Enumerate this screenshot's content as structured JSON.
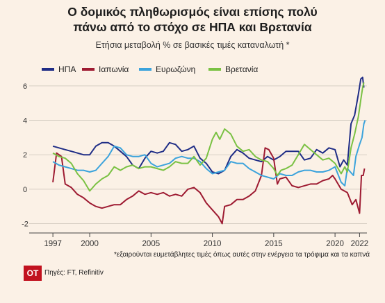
{
  "header": {
    "title_line1": "Ο δομικός πληθωρισμός είναι επίσης πολύ",
    "title_line2": "πάνω από το στόχο σε ΗΠΑ και Βρετανία",
    "subtitle": "Ετήσια μεταβολή % σε βασικές τιμές καταναλωτή *"
  },
  "footer": {
    "footnote": "*εξαιρούνται ευμετάβλητες τιμές όπως αυτές στην ενέργεια τα τρόφιμα και τα καπνά",
    "logo_text": "ΟΤ",
    "source": "Πηγές: FT, Refinitiv"
  },
  "chart_data": {
    "type": "line",
    "x_tick_labels": [
      "1997",
      "2000",
      "2005",
      "2010",
      "2015",
      "2020",
      "2022"
    ],
    "x_tick_values": [
      1997,
      2000,
      2005,
      2010,
      2015,
      2020,
      2022
    ],
    "y_tick_labels": [
      "-2",
      "0",
      "2",
      "4",
      "6"
    ],
    "y_tick_values": [
      -2,
      0,
      2,
      4,
      6
    ],
    "xlim": [
      1996.2,
      2022.6
    ],
    "ylim": [
      -2.3,
      6.8
    ],
    "grid": "horizontal",
    "legend": "top",
    "x_unit": "year",
    "series": [
      {
        "name": "ΗΠΑ",
        "color": "#1f2d86",
        "points": [
          [
            1997,
            2.5
          ],
          [
            1997.5,
            2.4
          ],
          [
            1998,
            2.3
          ],
          [
            1998.5,
            2.2
          ],
          [
            1999,
            2.1
          ],
          [
            1999.5,
            2.0
          ],
          [
            2000,
            2.0
          ],
          [
            2000.5,
            2.5
          ],
          [
            2001,
            2.7
          ],
          [
            2001.5,
            2.7
          ],
          [
            2002,
            2.5
          ],
          [
            2002.5,
            2.2
          ],
          [
            2003,
            1.9
          ],
          [
            2003.5,
            1.4
          ],
          [
            2004,
            1.2
          ],
          [
            2004.5,
            1.8
          ],
          [
            2005,
            2.2
          ],
          [
            2005.5,
            2.1
          ],
          [
            2006,
            2.2
          ],
          [
            2006.5,
            2.7
          ],
          [
            2007,
            2.6
          ],
          [
            2007.5,
            2.2
          ],
          [
            2008,
            2.3
          ],
          [
            2008.5,
            2.5
          ],
          [
            2009,
            1.8
          ],
          [
            2009.5,
            1.5
          ],
          [
            2010,
            1.0
          ],
          [
            2010.5,
            0.9
          ],
          [
            2011,
            1.1
          ],
          [
            2011.5,
            1.9
          ],
          [
            2012,
            2.3
          ],
          [
            2012.5,
            2.1
          ],
          [
            2013,
            1.8
          ],
          [
            2013.5,
            1.7
          ],
          [
            2014,
            1.6
          ],
          [
            2014.5,
            1.9
          ],
          [
            2015,
            1.7
          ],
          [
            2015.5,
            1.9
          ],
          [
            2016,
            2.2
          ],
          [
            2016.5,
            2.2
          ],
          [
            2017,
            2.2
          ],
          [
            2017.5,
            1.7
          ],
          [
            2018,
            1.8
          ],
          [
            2018.5,
            2.3
          ],
          [
            2019,
            2.1
          ],
          [
            2019.5,
            2.4
          ],
          [
            2020,
            2.3
          ],
          [
            2020.4,
            1.3
          ],
          [
            2020.7,
            1.7
          ],
          [
            2021,
            1.4
          ],
          [
            2021.3,
            3.8
          ],
          [
            2021.6,
            4.3
          ],
          [
            2021.9,
            5.5
          ],
          [
            2022.1,
            6.4
          ],
          [
            2022.25,
            6.5
          ],
          [
            2022.35,
            5.9
          ]
        ]
      },
      {
        "name": "Ιαπωνία",
        "color": "#9e1b32",
        "points": [
          [
            1997,
            0.4
          ],
          [
            1997.3,
            2.1
          ],
          [
            1997.7,
            1.9
          ],
          [
            1998,
            0.3
          ],
          [
            1998.5,
            0.1
          ],
          [
            1999,
            -0.3
          ],
          [
            1999.5,
            -0.5
          ],
          [
            2000,
            -0.8
          ],
          [
            2000.5,
            -1.0
          ],
          [
            2001,
            -1.1
          ],
          [
            2001.5,
            -1.0
          ],
          [
            2002,
            -0.9
          ],
          [
            2002.5,
            -0.9
          ],
          [
            2003,
            -0.6
          ],
          [
            2003.5,
            -0.4
          ],
          [
            2004,
            -0.1
          ],
          [
            2004.5,
            -0.3
          ],
          [
            2005,
            -0.2
          ],
          [
            2005.5,
            -0.3
          ],
          [
            2006,
            -0.2
          ],
          [
            2006.5,
            -0.4
          ],
          [
            2007,
            -0.3
          ],
          [
            2007.5,
            -0.4
          ],
          [
            2008,
            0.0
          ],
          [
            2008.5,
            0.1
          ],
          [
            2009,
            -0.2
          ],
          [
            2009.5,
            -0.8
          ],
          [
            2010,
            -1.2
          ],
          [
            2010.5,
            -1.6
          ],
          [
            2010.8,
            -2.0
          ],
          [
            2011,
            -1.0
          ],
          [
            2011.5,
            -0.9
          ],
          [
            2012,
            -0.6
          ],
          [
            2012.5,
            -0.6
          ],
          [
            2013,
            -0.4
          ],
          [
            2013.5,
            -0.1
          ],
          [
            2014,
            0.8
          ],
          [
            2014.3,
            2.4
          ],
          [
            2014.6,
            2.3
          ],
          [
            2015,
            1.8
          ],
          [
            2015.3,
            0.3
          ],
          [
            2015.5,
            0.6
          ],
          [
            2016,
            0.7
          ],
          [
            2016.5,
            0.2
          ],
          [
            2017,
            0.1
          ],
          [
            2017.5,
            0.2
          ],
          [
            2018,
            0.3
          ],
          [
            2018.5,
            0.3
          ],
          [
            2019,
            0.5
          ],
          [
            2019.5,
            0.6
          ],
          [
            2019.8,
            0.8
          ],
          [
            2020,
            0.6
          ],
          [
            2020.5,
            0.0
          ],
          [
            2021,
            -0.2
          ],
          [
            2021.4,
            -0.9
          ],
          [
            2021.7,
            -0.6
          ],
          [
            2022,
            -1.4
          ],
          [
            2022.15,
            0.8
          ],
          [
            2022.3,
            0.8
          ],
          [
            2022.4,
            1.2
          ]
        ]
      },
      {
        "name": "Ευρωζώνη",
        "color": "#3ba3dc",
        "points": [
          [
            1997,
            1.6
          ],
          [
            1997.5,
            1.4
          ],
          [
            1998,
            1.3
          ],
          [
            1998.5,
            1.2
          ],
          [
            1999,
            1.1
          ],
          [
            1999.5,
            1.1
          ],
          [
            2000,
            1.0
          ],
          [
            2000.5,
            1.1
          ],
          [
            2001,
            1.5
          ],
          [
            2001.5,
            1.9
          ],
          [
            2002,
            2.5
          ],
          [
            2002.5,
            2.4
          ],
          [
            2003,
            2.0
          ],
          [
            2003.5,
            1.9
          ],
          [
            2004,
            1.9
          ],
          [
            2004.5,
            2.0
          ],
          [
            2005,
            1.5
          ],
          [
            2005.5,
            1.3
          ],
          [
            2006,
            1.4
          ],
          [
            2006.5,
            1.5
          ],
          [
            2007,
            1.8
          ],
          [
            2007.5,
            1.9
          ],
          [
            2008,
            1.8
          ],
          [
            2008.5,
            1.8
          ],
          [
            2009,
            1.6
          ],
          [
            2009.5,
            1.2
          ],
          [
            2010,
            0.9
          ],
          [
            2010.5,
            1.0
          ],
          [
            2011,
            1.1
          ],
          [
            2011.5,
            1.6
          ],
          [
            2012,
            1.5
          ],
          [
            2012.5,
            1.5
          ],
          [
            2013,
            1.2
          ],
          [
            2013.5,
            1.0
          ],
          [
            2014,
            0.8
          ],
          [
            2014.5,
            0.7
          ],
          [
            2015,
            0.6
          ],
          [
            2015.5,
            0.9
          ],
          [
            2016,
            0.8
          ],
          [
            2016.5,
            0.8
          ],
          [
            2017,
            1.0
          ],
          [
            2017.5,
            1.1
          ],
          [
            2018,
            1.1
          ],
          [
            2018.5,
            1.0
          ],
          [
            2019,
            1.0
          ],
          [
            2019.5,
            1.1
          ],
          [
            2020,
            1.3
          ],
          [
            2020.5,
            0.4
          ],
          [
            2020.8,
            0.2
          ],
          [
            2021,
            1.2
          ],
          [
            2021.5,
            0.8
          ],
          [
            2021.7,
            1.9
          ],
          [
            2022,
            2.6
          ],
          [
            2022.2,
            3.0
          ],
          [
            2022.35,
            3.8
          ],
          [
            2022.45,
            4.0
          ]
        ]
      },
      {
        "name": "Βρετανία",
        "color": "#7ac143",
        "points": [
          [
            1997,
            2.1
          ],
          [
            1997.5,
            1.9
          ],
          [
            1998,
            1.8
          ],
          [
            1998.5,
            1.5
          ],
          [
            1999,
            0.9
          ],
          [
            1999.5,
            0.5
          ],
          [
            2000,
            -0.1
          ],
          [
            2000.5,
            0.3
          ],
          [
            2001,
            0.6
          ],
          [
            2001.5,
            0.8
          ],
          [
            2002,
            1.3
          ],
          [
            2002.5,
            1.1
          ],
          [
            2003,
            1.3
          ],
          [
            2003.5,
            1.4
          ],
          [
            2004,
            1.2
          ],
          [
            2004.5,
            1.3
          ],
          [
            2005,
            1.3
          ],
          [
            2005.5,
            1.2
          ],
          [
            2006,
            1.1
          ],
          [
            2006.5,
            1.3
          ],
          [
            2007,
            1.6
          ],
          [
            2007.5,
            1.5
          ],
          [
            2008,
            1.5
          ],
          [
            2008.5,
            1.9
          ],
          [
            2009,
            1.4
          ],
          [
            2009.5,
            1.8
          ],
          [
            2010,
            2.9
          ],
          [
            2010.3,
            3.3
          ],
          [
            2010.6,
            2.9
          ],
          [
            2011,
            3.5
          ],
          [
            2011.5,
            3.2
          ],
          [
            2012,
            2.5
          ],
          [
            2012.5,
            2.2
          ],
          [
            2013,
            2.3
          ],
          [
            2013.5,
            1.9
          ],
          [
            2014,
            1.7
          ],
          [
            2014.5,
            1.6
          ],
          [
            2015,
            1.2
          ],
          [
            2015.3,
            0.8
          ],
          [
            2015.6,
            1.1
          ],
          [
            2016,
            1.2
          ],
          [
            2016.5,
            1.4
          ],
          [
            2017,
            2.0
          ],
          [
            2017.5,
            2.6
          ],
          [
            2018,
            2.3
          ],
          [
            2018.5,
            2.0
          ],
          [
            2019,
            1.7
          ],
          [
            2019.5,
            1.8
          ],
          [
            2020,
            1.5
          ],
          [
            2020.5,
            0.9
          ],
          [
            2020.8,
            1.3
          ],
          [
            2021,
            1.0
          ],
          [
            2021.3,
            2.4
          ],
          [
            2021.6,
            3.2
          ],
          [
            2021.9,
            4.2
          ],
          [
            2022.1,
            5.2
          ],
          [
            2022.25,
            5.9
          ],
          [
            2022.35,
            6.2
          ]
        ]
      }
    ]
  }
}
